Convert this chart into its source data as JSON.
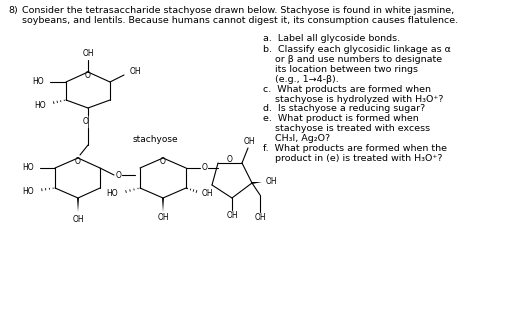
{
  "background_color": "#ffffff",
  "fig_width": 5.19,
  "fig_height": 3.21,
  "dpi": 100,
  "question_number": "8)",
  "intro_line1": "Consider the tetrasaccharide stachyose drawn below. Stachyose is found in white jasmine,",
  "intro_line2": "soybeans, and lentils. Because humans cannot digest it, its consumption causes flatulence.",
  "stachyose_label": "stachyose",
  "q_a": "a.  Label all glycoside bonds.",
  "q_b1": "b.  Classify each glycosidic linkage as α",
  "q_b2": "    or β and use numbers to designate",
  "q_b3": "    its location between two rings",
  "q_b4": "    (e.g., 1→4-β).",
  "q_c1": "c.  What products are formed when",
  "q_c2": "    stachyose is hydrolyzed with H₃O⁺?",
  "q_d": "d.  Is stachyose a reducing sugar?",
  "q_e1": "e.  What product is formed when",
  "q_e2": "    stachyose is treated with excess",
  "q_e3": "    CH₃I, Ag₂O?",
  "q_f1": "f.  What products are formed when the",
  "q_f2": "    product in (e) is treated with H₃O⁺?"
}
